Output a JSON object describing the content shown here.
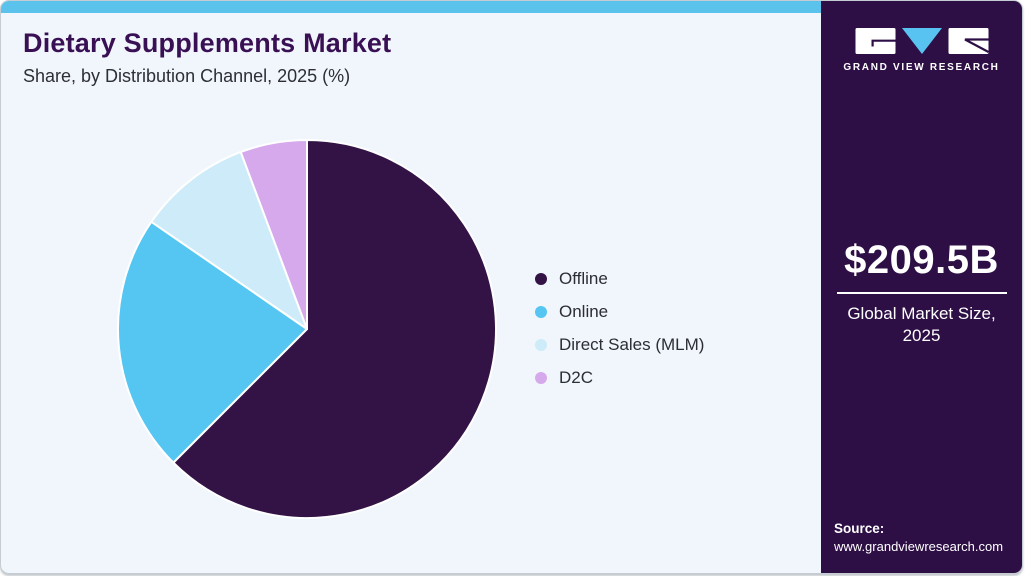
{
  "header": {
    "title": "Dietary Supplements Market",
    "subtitle": "Share, by Distribution Channel, 2025 (%)"
  },
  "chart_data": {
    "type": "pie",
    "title": "Dietary Supplements Market Share, by Distribution Channel, 2025 (%)",
    "unit": "%",
    "start_angle_deg": 0,
    "direction": "clockwise",
    "legend_position": "right",
    "labels_on_slices": false,
    "segments": [
      {
        "label": "Offline",
        "value": 62.5,
        "color": "#331346"
      },
      {
        "label": "Online",
        "value": 22.1,
        "color": "#55C6F2"
      },
      {
        "label": "Direct Sales (MLM)",
        "value": 9.7,
        "color": "#CDEBF9"
      },
      {
        "label": "D2C",
        "value": 5.7,
        "color": "#D6A9EC"
      }
    ]
  },
  "sidebar": {
    "logo": {
      "brand": "GRAND VIEW RESEARCH"
    },
    "market_size": {
      "value": "$209.5B",
      "label": "Global Market Size, 2025"
    },
    "source": {
      "label": "Source:",
      "url": "www.grandviewresearch.com"
    },
    "background_color": "#2D0F45"
  },
  "theme": {
    "accent_strip_color": "#5BC2EC",
    "background_color": "#F0F6FB",
    "title_color": "#3A1055",
    "pie_slice_border_color": "#FFFFFF",
    "logo_triangle_color": "#58C3F0"
  }
}
